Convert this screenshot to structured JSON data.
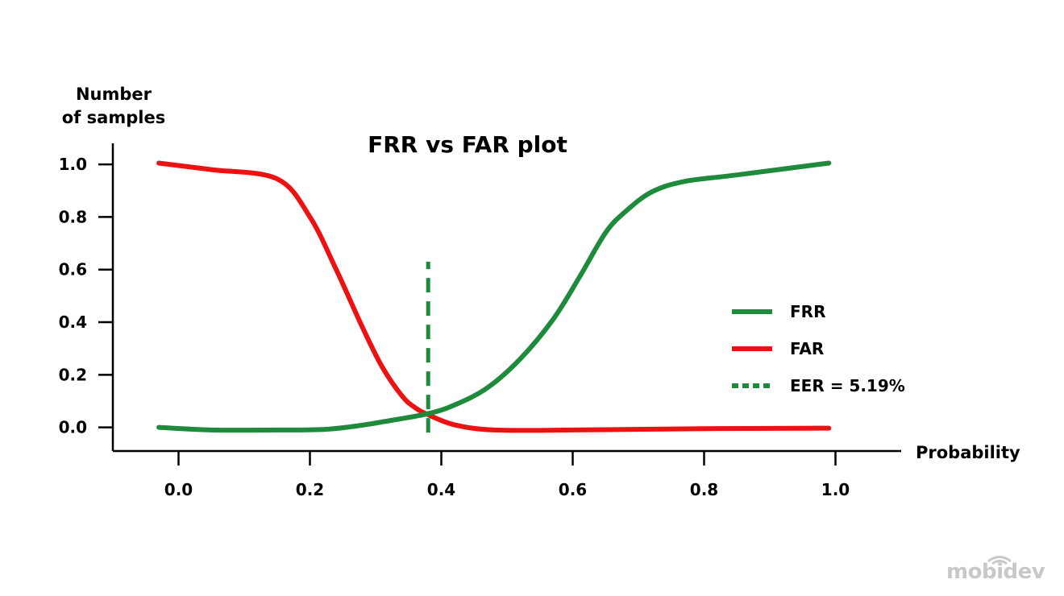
{
  "chart_data": {
    "type": "line",
    "title": "FRR vs FAR plot",
    "xlabel": "Probability",
    "ylabel_lines": [
      "Number",
      "of samples"
    ],
    "xlim": [
      -0.1,
      1.1
    ],
    "ylim": [
      -0.09,
      1.08
    ],
    "x_ticks": [
      0.0,
      0.2,
      0.4,
      0.6,
      0.8,
      1.0
    ],
    "x_tick_labels": [
      "0.0",
      "0.2",
      "0.4",
      "0.6",
      "0.8",
      "1.0"
    ],
    "y_ticks": [
      0.0,
      0.2,
      0.4,
      0.6,
      0.8,
      1.0
    ],
    "y_tick_labels": [
      "0.0",
      "0.2",
      "0.4",
      "0.6",
      "0.8",
      "1.0"
    ],
    "grid": false,
    "legend_position": "right",
    "series": [
      {
        "name": "FRR",
        "color": "#1e8a3c",
        "style": "solid",
        "x": [
          -0.03,
          0.05,
          0.15,
          0.22,
          0.27,
          0.32,
          0.38,
          0.42,
          0.47,
          0.52,
          0.57,
          0.61,
          0.65,
          0.68,
          0.72,
          0.77,
          0.85,
          0.99
        ],
        "y": [
          0.0,
          -0.01,
          -0.01,
          -0.008,
          0.005,
          0.025,
          0.052,
          0.085,
          0.15,
          0.26,
          0.41,
          0.57,
          0.74,
          0.82,
          0.895,
          0.935,
          0.96,
          1.005
        ]
      },
      {
        "name": "FAR",
        "color": "#ee1111",
        "style": "solid",
        "x": [
          -0.03,
          0.05,
          0.15,
          0.2,
          0.24,
          0.28,
          0.31,
          0.34,
          0.36,
          0.38,
          0.42,
          0.48,
          0.6,
          0.8,
          0.99
        ],
        "y": [
          1.005,
          0.98,
          0.945,
          0.8,
          0.6,
          0.38,
          0.23,
          0.12,
          0.075,
          0.048,
          0.01,
          -0.01,
          -0.01,
          -0.005,
          -0.003
        ]
      }
    ],
    "eer_line": {
      "label": "EER = 5.19%",
      "color": "#1e8a3c",
      "style": "dashed",
      "x": 0.38,
      "y_from": -0.02,
      "y_to": 0.63
    }
  },
  "watermark": {
    "text": "mobidev",
    "color": "#c8c8c8"
  }
}
